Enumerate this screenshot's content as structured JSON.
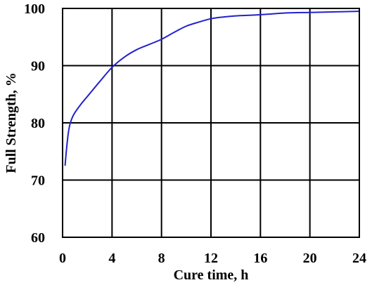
{
  "chart_data": {
    "type": "line",
    "title": "",
    "xlabel": "Cure time, h",
    "ylabel": "Full Strength, %",
    "xlim": [
      0,
      24
    ],
    "ylim": [
      60,
      100
    ],
    "x_ticks": [
      0,
      4,
      8,
      12,
      16,
      20,
      24
    ],
    "y_ticks": [
      60,
      70,
      80,
      90,
      100
    ],
    "grid": true,
    "legend": "none",
    "series": [
      {
        "color": "#2222cc",
        "points": [
          [
            0.2,
            72.5
          ],
          [
            0.3,
            75.0
          ],
          [
            0.45,
            78.0
          ],
          [
            0.6,
            79.8
          ],
          [
            0.8,
            81.0
          ],
          [
            1.0,
            81.8
          ],
          [
            1.5,
            83.3
          ],
          [
            2.0,
            84.6
          ],
          [
            3.0,
            87.2
          ],
          [
            4.0,
            89.7
          ],
          [
            5.0,
            91.5
          ],
          [
            6.0,
            92.8
          ],
          [
            7.0,
            93.7
          ],
          [
            8.0,
            94.6
          ],
          [
            9.0,
            95.8
          ],
          [
            10.0,
            96.9
          ],
          [
            11.0,
            97.6
          ],
          [
            12.0,
            98.2
          ],
          [
            13.0,
            98.5
          ],
          [
            14.0,
            98.7
          ],
          [
            16.0,
            98.9
          ],
          [
            18.0,
            99.2
          ],
          [
            20.0,
            99.3
          ],
          [
            22.0,
            99.4
          ],
          [
            24.0,
            99.5
          ]
        ]
      }
    ]
  }
}
